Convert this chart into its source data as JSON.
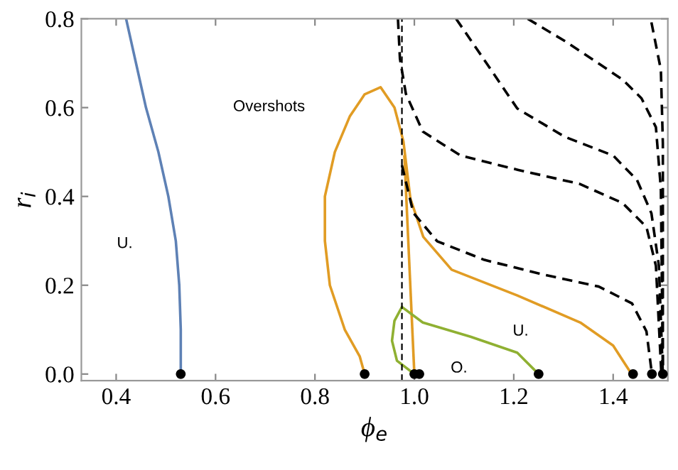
{
  "chart_data": {
    "type": "line",
    "xlabel": "ϕ$_{e}$",
    "ylabel": "r$_{i}$",
    "xlim": [
      0.33,
      1.51
    ],
    "ylim": [
      -0.015,
      0.8
    ],
    "xticks": [
      0.4,
      0.6,
      0.8,
      {
        "value": 1.0,
        "label": "1.0"
      },
      1.2,
      1.4
    ],
    "yticks": [
      {
        "value": 0.0,
        "label": "0.0"
      },
      0.2,
      0.4,
      0.6,
      0.8
    ],
    "grid": false,
    "legend": false,
    "ref_lines": [
      {
        "axis": "x",
        "value": 0.975,
        "color": "#000000",
        "line_style": "dashed"
      }
    ],
    "annotations": [
      "U.",
      "Overshots",
      "U.",
      "O."
    ],
    "series": [
      {
        "color": "#5e81b5",
        "line_style": "solid",
        "x": [
          0.42,
          0.44,
          0.46,
          0.485,
          0.505,
          0.52,
          0.527,
          0.53,
          0.53
        ],
        "values": [
          0.8,
          0.7,
          0.6,
          0.5,
          0.4,
          0.3,
          0.2,
          0.1,
          0.0
        ]
      },
      {
        "color": "#e19c24",
        "line_style": "solid",
        "x": [
          0.9,
          0.89,
          0.86,
          0.83,
          0.82,
          0.82,
          0.84,
          0.87,
          0.9,
          0.932,
          0.96,
          0.978,
          0.992,
          1.018,
          1.075,
          1.207,
          1.334,
          1.4,
          1.437
        ],
        "values": [
          0.0,
          0.04,
          0.1,
          0.2,
          0.3,
          0.4,
          0.5,
          0.58,
          0.63,
          0.646,
          0.6,
          0.524,
          0.395,
          0.309,
          0.235,
          0.177,
          0.116,
          0.064,
          0.0
        ]
      },
      {
        "color": "#e19c24",
        "line_style": "solid",
        "x": [
          0.98,
          1.0
        ],
        "values": [
          0.49,
          0.0
        ]
      },
      {
        "color": "#8fb032",
        "line_style": "solid",
        "x": [
          1.0,
          0.965,
          0.955,
          0.96,
          0.975,
          1.017,
          1.113,
          1.207,
          1.25
        ],
        "values": [
          0.0,
          0.03,
          0.075,
          0.12,
          0.151,
          0.116,
          0.084,
          0.048,
          0.0
        ]
      },
      {
        "color": "#000000",
        "line_style": "dashed",
        "x": [
          0.967,
          0.971,
          0.983,
          1.017,
          1.093,
          1.208,
          1.333,
          1.419,
          1.467,
          1.486,
          1.497
        ],
        "values": [
          0.8,
          0.71,
          0.631,
          0.546,
          0.492,
          0.46,
          0.428,
          0.385,
          0.331,
          0.244,
          0.0
        ]
      },
      {
        "color": "#000000",
        "line_style": "dashed",
        "x": [
          0.975,
          0.998,
          1.046,
          1.141,
          1.256,
          1.371,
          1.438,
          1.467,
          1.478
        ],
        "values": [
          0.47,
          0.363,
          0.299,
          0.257,
          0.225,
          0.197,
          0.159,
          0.096,
          0.0
        ]
      },
      {
        "color": "#000000",
        "line_style": "dashed",
        "x": [
          1.084,
          1.141,
          1.207,
          1.303,
          1.4,
          1.448,
          1.477,
          1.492,
          1.5
        ],
        "values": [
          0.8,
          0.707,
          0.598,
          0.534,
          0.492,
          0.437,
          0.362,
          0.244,
          0.0
        ]
      },
      {
        "color": "#000000",
        "line_style": "dashed",
        "x": [
          1.228,
          1.304,
          1.362,
          1.419,
          1.457,
          1.486,
          1.496,
          1.5
        ],
        "values": [
          0.8,
          0.749,
          0.706,
          0.663,
          0.621,
          0.556,
          0.417,
          0.0
        ]
      },
      {
        "color": "#000000",
        "line_style": "dashed",
        "x": [
          1.477,
          1.496,
          1.5,
          1.5
        ],
        "values": [
          0.792,
          0.685,
          0.52,
          0.0
        ]
      },
      {
        "type": "scatter",
        "color": "#000000",
        "marker": "circle",
        "x": [
          0.53,
          0.9,
          1.0,
          1.01,
          1.25,
          1.44,
          1.478,
          1.5
        ],
        "values": [
          0,
          0,
          0,
          0,
          0,
          0,
          0,
          0
        ]
      }
    ]
  }
}
